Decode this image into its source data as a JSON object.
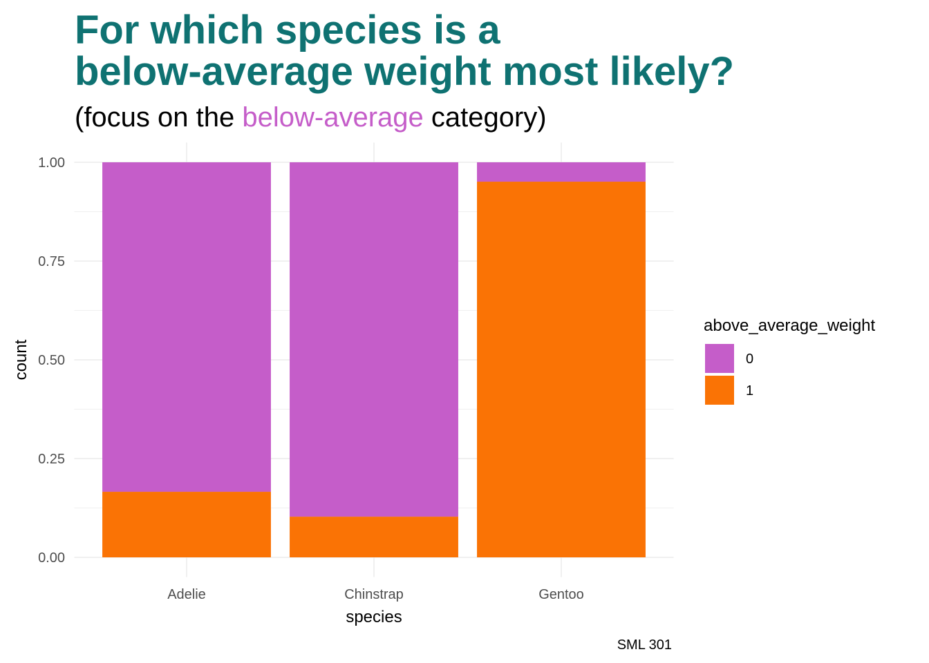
{
  "chart_data": {
    "type": "stacked_bar",
    "title": [
      "For which species is a",
      "below-average weight most likely?"
    ],
    "title_color": "#0f7272",
    "subtitle": [
      {
        "text": "(focus on the "
      },
      {
        "text": "below-average",
        "color": "#c55dc9"
      },
      {
        "text": " category)"
      }
    ],
    "x_label": "species",
    "y_label": "count",
    "caption": "SML 301",
    "categories": [
      "Adelie",
      "Chinstrap",
      "Gentoo"
    ],
    "legend_title": "above_average_weight",
    "series": [
      {
        "name": "0",
        "color": "#c55dc9",
        "values": [
          0.834,
          0.897,
          0.049
        ]
      },
      {
        "name": "1",
        "color": "#fa7305",
        "values": [
          0.166,
          0.103,
          0.951
        ]
      }
    ],
    "ylim": [
      -0.05,
      1.05
    ],
    "yticks": [
      {
        "value": 0,
        "label": "0.00"
      },
      0.25,
      {
        "value": 0.5,
        "label": "0.50"
      },
      0.75,
      {
        "value": 1,
        "label": "1.00"
      }
    ],
    "yticks_minor": [
      0.125,
      0.375,
      0.625,
      0.875
    ],
    "grid": true,
    "legend": "right"
  }
}
